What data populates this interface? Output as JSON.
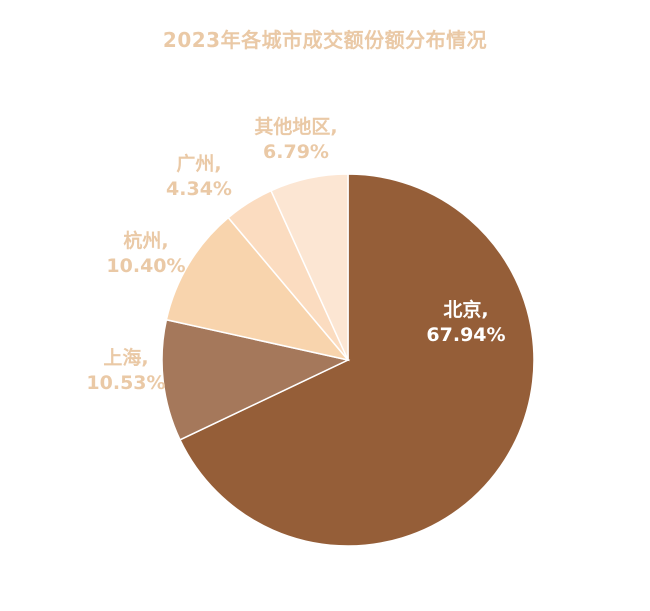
{
  "chart_data": {
    "type": "pie",
    "title": "2023年各城市成交额份额分布情况",
    "unit": "%",
    "slices": [
      {
        "label": "北京",
        "value": 67.94,
        "label_text": "北京,",
        "pct_text": "67.94%",
        "color": "#955e38",
        "label_color": "#ffffff"
      },
      {
        "label": "上海",
        "value": 10.53,
        "label_text": "上海,",
        "pct_text": "10.53%",
        "color": "#a5785b",
        "label_color": "#eac9a6"
      },
      {
        "label": "杭州",
        "value": 10.4,
        "label_text": "杭州,",
        "pct_text": "10.40%",
        "color": "#f8d4ad",
        "label_color": "#eac9a6"
      },
      {
        "label": "广州",
        "value": 4.34,
        "label_text": "广州,",
        "pct_text": "4.34%",
        "color": "#fbdcc0",
        "label_color": "#eac9a6"
      },
      {
        "label": "其他地区",
        "value": 6.79,
        "label_text": "其他地区,",
        "pct_text": "6.79%",
        "color": "#fce6d3",
        "label_color": "#eac9a6"
      }
    ]
  }
}
